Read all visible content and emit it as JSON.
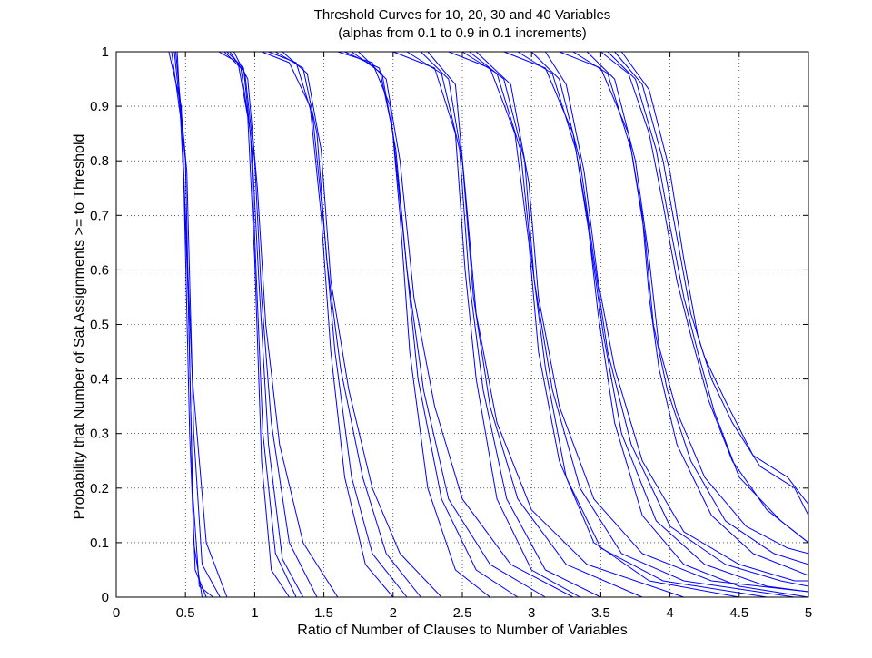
{
  "chart_data": {
    "type": "line",
    "title": "Threshold Curves for 10, 20, 30 and 40 Variables",
    "subtitle": "(alphas from 0.1 to 0.9 in 0.1 increments)",
    "xlabel": "Ratio of Number of Clauses to Number of Variables",
    "ylabel": "Probability that Number of Sat Assignments >= to Threshold",
    "xlim": [
      0,
      5
    ],
    "ylim": [
      0,
      1
    ],
    "xticks": [
      "0",
      "0.5",
      "1",
      "1.5",
      "2",
      "2.5",
      "3",
      "3.5",
      "4",
      "4.5",
      "5"
    ],
    "yticks": [
      "0",
      "0.1",
      "0.2",
      "0.3",
      "0.4",
      "0.5",
      "0.6",
      "0.7",
      "0.8",
      "0.9",
      "1"
    ],
    "grid": true,
    "line_color": "#0000ff",
    "series": [
      {
        "x": [
          0.4,
          0.48,
          0.53,
          0.57,
          0.65
        ],
        "y": [
          1.0,
          0.85,
          0.3,
          0.05,
          0.0
        ]
      },
      {
        "x": [
          0.42,
          0.5,
          0.55,
          0.6,
          0.7
        ],
        "y": [
          1.0,
          0.8,
          0.2,
          0.02,
          0.0
        ]
      },
      {
        "x": [
          0.44,
          0.5,
          0.55,
          0.65,
          0.8
        ],
        "y": [
          1.0,
          0.7,
          0.4,
          0.1,
          0.0
        ]
      },
      {
        "x": [
          0.43,
          0.51,
          0.56,
          0.62,
          0.75
        ],
        "y": [
          1.0,
          0.78,
          0.3,
          0.06,
          0.0
        ]
      },
      {
        "x": [
          0.38,
          0.47,
          0.52,
          0.56,
          0.62
        ],
        "y": [
          1.0,
          0.9,
          0.55,
          0.1,
          0.0
        ]
      },
      {
        "x": [
          0.74,
          0.88,
          0.95,
          1.0,
          1.05,
          1.12,
          1.25
        ],
        "y": [
          1.0,
          0.98,
          0.88,
          0.62,
          0.25,
          0.05,
          0.0
        ]
      },
      {
        "x": [
          0.78,
          0.9,
          0.97,
          1.01,
          1.06,
          1.15,
          1.3
        ],
        "y": [
          1.0,
          0.97,
          0.85,
          0.6,
          0.3,
          0.08,
          0.0
        ]
      },
      {
        "x": [
          0.82,
          0.93,
          1.0,
          1.05,
          1.12,
          1.25,
          1.45
        ],
        "y": [
          1.0,
          0.96,
          0.8,
          0.55,
          0.32,
          0.1,
          0.0
        ]
      },
      {
        "x": [
          0.85,
          0.95,
          1.02,
          1.08,
          1.18,
          1.35,
          1.6
        ],
        "y": [
          1.0,
          0.95,
          0.75,
          0.5,
          0.28,
          0.1,
          0.0
        ]
      },
      {
        "x": [
          0.8,
          0.92,
          0.98,
          1.03,
          1.1,
          1.2,
          1.35
        ],
        "y": [
          1.0,
          0.97,
          0.82,
          0.58,
          0.28,
          0.07,
          0.0
        ]
      },
      {
        "x": [
          1.05,
          1.25,
          1.4,
          1.48,
          1.55,
          1.65,
          1.8,
          2.0
        ],
        "y": [
          1.0,
          0.98,
          0.9,
          0.7,
          0.45,
          0.22,
          0.06,
          0.0
        ]
      },
      {
        "x": [
          1.1,
          1.3,
          1.42,
          1.5,
          1.58,
          1.7,
          1.85,
          2.1
        ],
        "y": [
          1.0,
          0.98,
          0.88,
          0.68,
          0.45,
          0.22,
          0.08,
          0.0
        ]
      },
      {
        "x": [
          1.15,
          1.35,
          1.45,
          1.52,
          1.62,
          1.78,
          1.95,
          2.2
        ],
        "y": [
          1.0,
          0.97,
          0.85,
          0.62,
          0.42,
          0.22,
          0.08,
          0.0
        ]
      },
      {
        "x": [
          1.2,
          1.38,
          1.48,
          1.55,
          1.68,
          1.85,
          2.05,
          2.35
        ],
        "y": [
          1.0,
          0.96,
          0.82,
          0.58,
          0.38,
          0.2,
          0.08,
          0.0
        ]
      },
      {
        "x": [
          1.6,
          1.85,
          1.98,
          2.05,
          2.12,
          2.25,
          2.45,
          2.7
        ],
        "y": [
          1.0,
          0.98,
          0.9,
          0.7,
          0.45,
          0.2,
          0.05,
          0.0
        ]
      },
      {
        "x": [
          1.65,
          1.9,
          2.0,
          2.08,
          2.18,
          2.35,
          2.6,
          2.9
        ],
        "y": [
          1.0,
          0.97,
          0.85,
          0.65,
          0.4,
          0.18,
          0.05,
          0.0
        ]
      },
      {
        "x": [
          1.7,
          1.92,
          2.02,
          2.1,
          2.22,
          2.4,
          2.7,
          3.1
        ],
        "y": [
          1.0,
          0.96,
          0.82,
          0.6,
          0.38,
          0.18,
          0.06,
          0.0
        ]
      },
      {
        "x": [
          1.75,
          1.95,
          2.05,
          2.15,
          2.3,
          2.5,
          2.85,
          3.3
        ],
        "y": [
          1.0,
          0.95,
          0.8,
          0.55,
          0.35,
          0.18,
          0.06,
          0.0
        ]
      },
      {
        "x": [
          2.0,
          2.3,
          2.45,
          2.52,
          2.6,
          2.75,
          3.0,
          3.35
        ],
        "y": [
          1.0,
          0.97,
          0.85,
          0.6,
          0.4,
          0.18,
          0.05,
          0.0
        ]
      },
      {
        "x": [
          2.1,
          2.35,
          2.48,
          2.55,
          2.65,
          2.82,
          3.1,
          3.5
        ],
        "y": [
          1.0,
          0.96,
          0.82,
          0.58,
          0.38,
          0.18,
          0.05,
          0.0
        ]
      },
      {
        "x": [
          2.2,
          2.4,
          2.5,
          2.58,
          2.7,
          2.9,
          3.25,
          3.8
        ],
        "y": [
          1.0,
          0.95,
          0.8,
          0.55,
          0.35,
          0.18,
          0.06,
          0.0
        ]
      },
      {
        "x": [
          2.25,
          2.45,
          2.52,
          2.6,
          2.75,
          3.0,
          3.4,
          4.1
        ],
        "y": [
          1.0,
          0.94,
          0.75,
          0.52,
          0.32,
          0.16,
          0.06,
          0.0
        ]
      },
      {
        "x": [
          2.4,
          2.7,
          2.88,
          2.98,
          3.05,
          3.2,
          3.45,
          3.85,
          4.5
        ],
        "y": [
          1.0,
          0.97,
          0.85,
          0.65,
          0.45,
          0.25,
          0.1,
          0.03,
          0.0
        ]
      },
      {
        "x": [
          2.5,
          2.75,
          2.92,
          3.0,
          3.1,
          3.25,
          3.5,
          3.95,
          4.7
        ],
        "y": [
          1.0,
          0.96,
          0.82,
          0.62,
          0.42,
          0.22,
          0.09,
          0.03,
          0.0
        ]
      },
      {
        "x": [
          2.55,
          2.8,
          2.95,
          3.02,
          3.15,
          3.35,
          3.65,
          4.1,
          4.9
        ],
        "y": [
          1.0,
          0.95,
          0.8,
          0.58,
          0.38,
          0.2,
          0.08,
          0.03,
          0.0
        ]
      },
      {
        "x": [
          2.6,
          2.85,
          2.98,
          3.05,
          3.2,
          3.45,
          3.8,
          4.3,
          5.0
        ],
        "y": [
          1.0,
          0.94,
          0.76,
          0.55,
          0.35,
          0.18,
          0.08,
          0.03,
          0.01
        ]
      },
      {
        "x": [
          2.8,
          3.1,
          3.3,
          3.4,
          3.48,
          3.6,
          3.8,
          4.1,
          4.5,
          5.0
        ],
        "y": [
          1.0,
          0.97,
          0.85,
          0.7,
          0.52,
          0.32,
          0.15,
          0.06,
          0.02,
          0.0
        ]
      },
      {
        "x": [
          2.9,
          3.15,
          3.32,
          3.42,
          3.52,
          3.65,
          3.9,
          4.25,
          4.7,
          5.0
        ],
        "y": [
          1.0,
          0.96,
          0.82,
          0.66,
          0.48,
          0.3,
          0.14,
          0.06,
          0.02,
          0.01
        ]
      },
      {
        "x": [
          3.0,
          3.2,
          3.35,
          3.45,
          3.55,
          3.72,
          4.0,
          4.4,
          4.8,
          5.0
        ],
        "y": [
          1.0,
          0.95,
          0.8,
          0.62,
          0.45,
          0.28,
          0.13,
          0.06,
          0.03,
          0.02
        ]
      },
      {
        "x": [
          3.1,
          3.25,
          3.38,
          3.48,
          3.6,
          3.8,
          4.1,
          4.5,
          4.9,
          5.0
        ],
        "y": [
          1.0,
          0.94,
          0.78,
          0.58,
          0.42,
          0.25,
          0.12,
          0.06,
          0.03,
          0.03
        ]
      },
      {
        "x": [
          3.2,
          3.5,
          3.7,
          3.8,
          3.85,
          3.92,
          4.05,
          4.3,
          4.6,
          5.0
        ],
        "y": [
          1.0,
          0.97,
          0.85,
          0.7,
          0.55,
          0.42,
          0.28,
          0.15,
          0.08,
          0.04
        ]
      },
      {
        "x": [
          3.3,
          3.55,
          3.72,
          3.82,
          3.88,
          3.98,
          4.15,
          4.4,
          4.75,
          5.0
        ],
        "y": [
          1.0,
          0.96,
          0.82,
          0.66,
          0.5,
          0.38,
          0.25,
          0.14,
          0.08,
          0.06
        ]
      },
      {
        "x": [
          3.4,
          3.6,
          3.75,
          3.85,
          3.92,
          4.05,
          4.25,
          4.55,
          4.85,
          5.0
        ],
        "y": [
          1.0,
          0.95,
          0.8,
          0.62,
          0.46,
          0.34,
          0.22,
          0.13,
          0.09,
          0.08
        ]
      },
      {
        "x": [
          3.5,
          3.7,
          3.85,
          3.95,
          4.05,
          4.15,
          4.28,
          4.45,
          4.7,
          5.0
        ],
        "y": [
          1.0,
          0.96,
          0.85,
          0.72,
          0.58,
          0.48,
          0.36,
          0.25,
          0.16,
          0.1
        ]
      },
      {
        "x": [
          3.55,
          3.75,
          3.9,
          4.0,
          4.1,
          4.2,
          4.32,
          4.5,
          4.8,
          5.0
        ],
        "y": [
          1.0,
          0.95,
          0.82,
          0.68,
          0.55,
          0.45,
          0.34,
          0.22,
          0.14,
          0.1
        ]
      },
      {
        "x": [
          3.6,
          3.8,
          3.95,
          4.05,
          4.15,
          4.25,
          4.4,
          4.6,
          4.85,
          5.0
        ],
        "y": [
          1.0,
          0.94,
          0.8,
          0.66,
          0.52,
          0.44,
          0.36,
          0.26,
          0.22,
          0.17
        ]
      },
      {
        "x": [
          3.65,
          3.85,
          4.0,
          4.1,
          4.2,
          4.3,
          4.45,
          4.65,
          4.9,
          5.0
        ],
        "y": [
          1.0,
          0.93,
          0.78,
          0.62,
          0.48,
          0.4,
          0.32,
          0.24,
          0.2,
          0.15
        ]
      }
    ]
  }
}
